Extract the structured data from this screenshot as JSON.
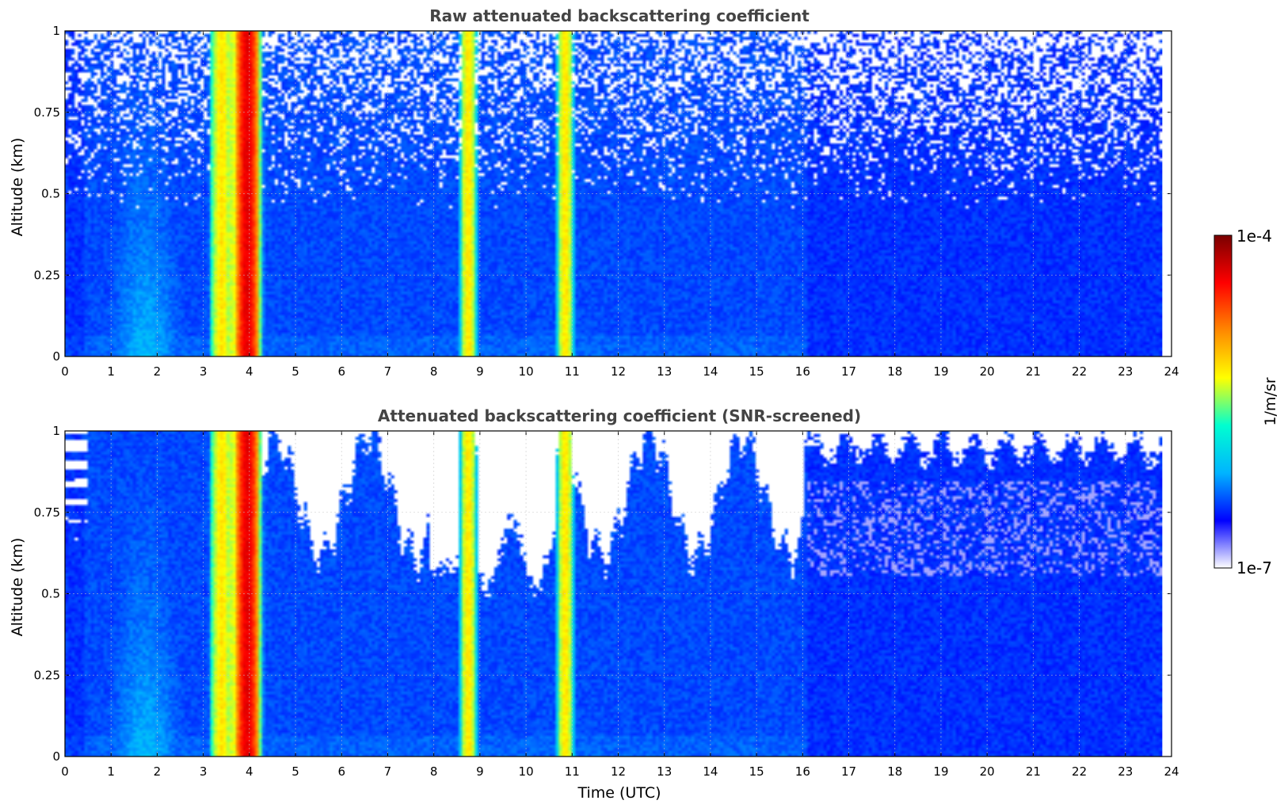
{
  "colormap_stops": [
    "#ffffff",
    "#0000ff",
    "#00b4ff",
    "#00ffd0",
    "#ffff00",
    "#ff8800",
    "#ff0000",
    "#7a0000"
  ],
  "chart_data": [
    {
      "type": "heatmap",
      "title": "Raw attenuated backscattering coefficient",
      "xlabel": "",
      "ylabel": "Altitude (km)",
      "xlim": [
        0,
        24
      ],
      "ylim": [
        0,
        1
      ],
      "x_ticks": [
        "0",
        "1",
        "2",
        "3",
        "4",
        "5",
        "6",
        "7",
        "8",
        "9",
        "10",
        "11",
        "12",
        "13",
        "14",
        "15",
        "16",
        "17",
        "18",
        "19",
        "20",
        "21",
        "22",
        "23",
        "24"
      ],
      "y_ticks": [
        "0",
        "0.25",
        "0.5",
        "0.75",
        "1"
      ],
      "grid": true,
      "data_end_time": 23.8,
      "screened": false,
      "features": [
        {
          "time_start": 3.7,
          "time_end": 4.2,
          "level": "high"
        },
        {
          "time_start": 3.2,
          "time_end": 3.6,
          "level": "moderate"
        },
        {
          "time_start": 8.6,
          "time_end": 8.9,
          "level": "moderate"
        },
        {
          "time_start": 10.7,
          "time_end": 11.0,
          "level": "moderate"
        },
        {
          "time_start": 1.0,
          "time_end": 2.5,
          "level": "enhanced"
        }
      ]
    },
    {
      "type": "heatmap",
      "title": "Attenuated backscattering coefficient (SNR-screened)",
      "xlabel": "Time (UTC)",
      "ylabel": "Altitude (km)",
      "xlim": [
        0,
        24
      ],
      "ylim": [
        0,
        1
      ],
      "x_ticks": [
        "0",
        "1",
        "2",
        "3",
        "4",
        "5",
        "6",
        "7",
        "8",
        "9",
        "10",
        "11",
        "12",
        "13",
        "14",
        "15",
        "16",
        "17",
        "18",
        "19",
        "20",
        "21",
        "22",
        "23",
        "24"
      ],
      "y_ticks": [
        "0",
        "0.25",
        "0.5",
        "0.75",
        "1"
      ],
      "grid": true,
      "data_end_time": 23.8,
      "screened": true,
      "features": [
        {
          "time_start": 3.7,
          "time_end": 4.2,
          "level": "high"
        },
        {
          "time_start": 3.2,
          "time_end": 3.6,
          "level": "moderate"
        },
        {
          "time_start": 8.6,
          "time_end": 8.9,
          "level": "moderate"
        },
        {
          "time_start": 10.7,
          "time_end": 11.0,
          "level": "moderate"
        },
        {
          "time_start": 1.0,
          "time_end": 2.5,
          "level": "enhanced"
        }
      ]
    }
  ],
  "colorbar": {
    "label": "1/m/sr",
    "max_label": "1e-4",
    "min_label": "1e-7",
    "scale": "log"
  }
}
